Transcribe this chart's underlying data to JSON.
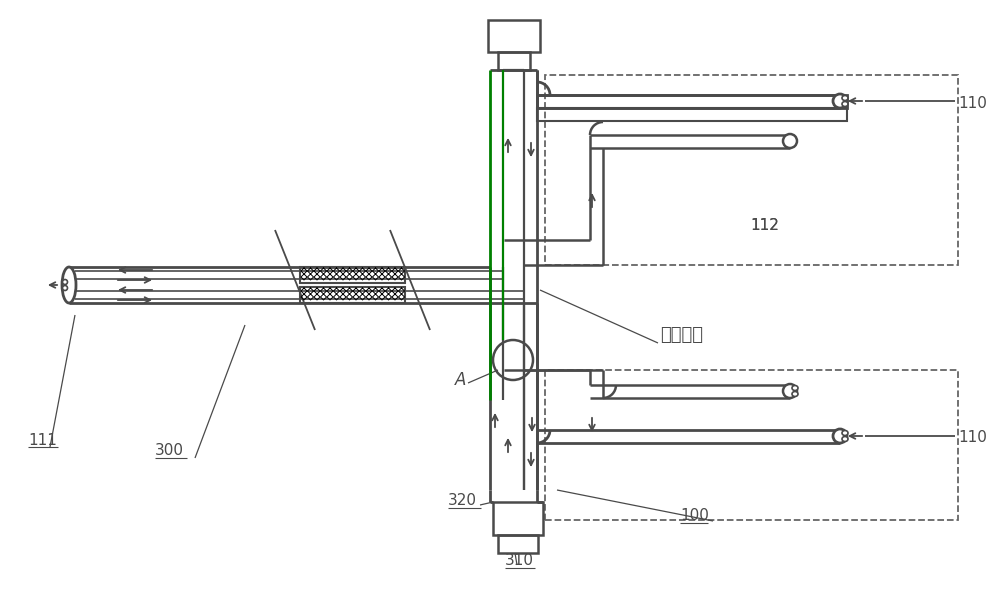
{
  "bg_color": "#ffffff",
  "lc": "#4a4a4a",
  "gc": "#008000",
  "figsize": [
    10.0,
    6.04
  ],
  "dpi": 100,
  "label_111": "111",
  "label_300": "300",
  "label_112": "112",
  "label_110": "110",
  "label_A": "A",
  "label_100": "100",
  "label_310": "310",
  "label_320": "320",
  "label_xinfeng": "新风管道"
}
